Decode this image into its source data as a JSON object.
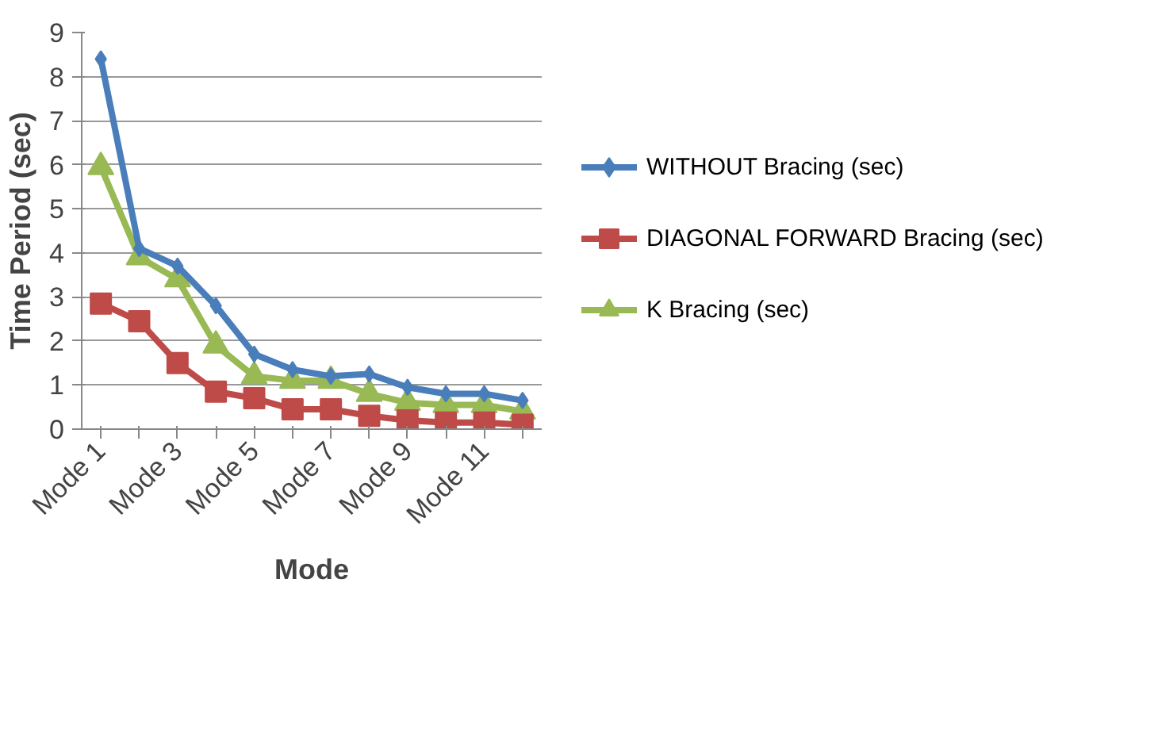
{
  "chart_data": {
    "type": "line",
    "xlabel": "Mode",
    "ylabel": "Time Period (sec)",
    "categories": [
      "Mode 1",
      null,
      "Mode 3",
      null,
      "Mode 5",
      null,
      "Mode 7",
      null,
      "Mode 9",
      null,
      "Mode 11",
      null
    ],
    "series": [
      {
        "name": "WITHOUT Bracing (sec)",
        "color": "#4a7ebb",
        "marker": "diamond",
        "values": [
          8.4,
          4.1,
          3.7,
          2.8,
          1.7,
          1.35,
          1.2,
          1.25,
          0.95,
          0.8,
          0.8,
          0.65
        ]
      },
      {
        "name": "DIAGONAL FORWARD Bracing (sec)",
        "color": "#be4b48",
        "marker": "square",
        "values": [
          2.85,
          2.45,
          1.5,
          0.85,
          0.7,
          0.45,
          0.45,
          0.3,
          0.2,
          0.15,
          0.15,
          0.1
        ]
      },
      {
        "name": "K Bracing (sec)",
        "color": "#98b954",
        "marker": "triangle",
        "values": [
          5.95,
          3.9,
          3.4,
          1.9,
          1.2,
          1.1,
          1.1,
          0.8,
          0.6,
          0.55,
          0.55,
          0.4
        ]
      }
    ],
    "ylim": [
      0,
      9
    ],
    "yticks": [
      0,
      1,
      2,
      3,
      4,
      5,
      6,
      7,
      8,
      9
    ],
    "grid": "y",
    "legend": "right"
  }
}
